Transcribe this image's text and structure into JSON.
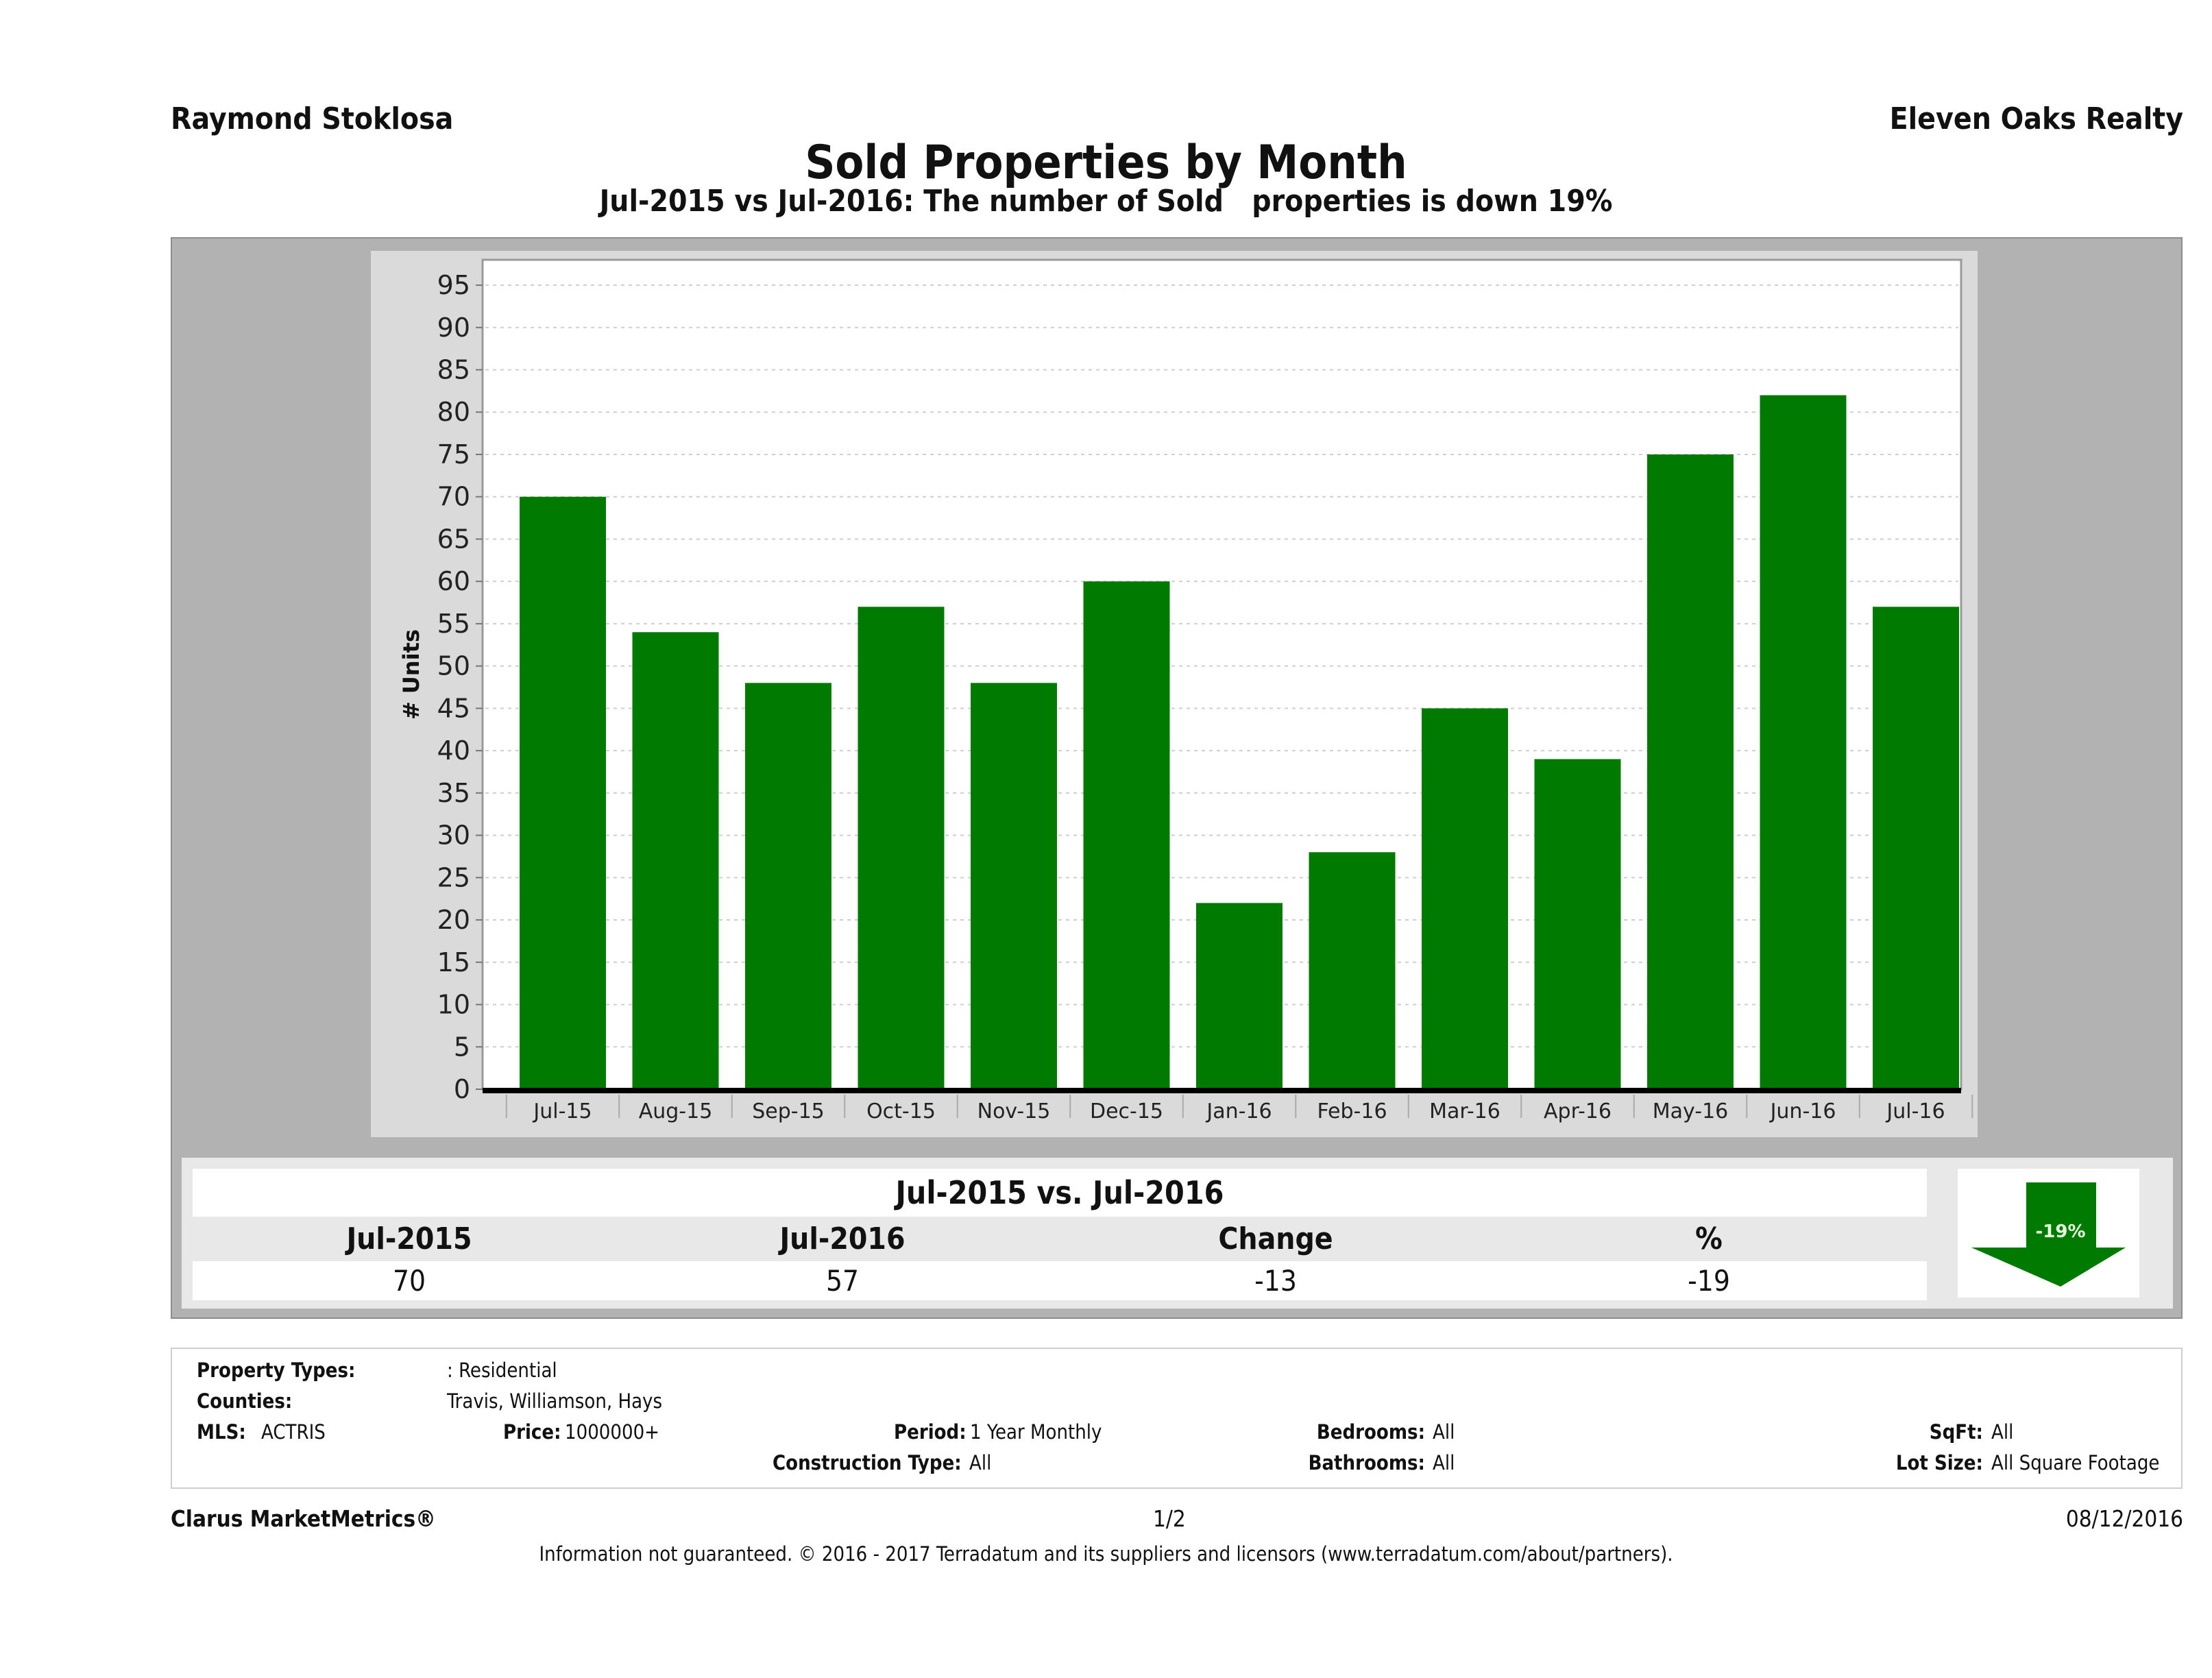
{
  "header": {
    "agent_name": "Raymond Stoklosa",
    "company_name": "Eleven Oaks Realty",
    "title": "Sold Properties by Month",
    "subtitle": "Jul-2015 vs Jul-2016: The number of Sold   properties is down 19%"
  },
  "chart_data": {
    "type": "bar",
    "title": "Sold Properties by Month",
    "xlabel": "",
    "ylabel": "# Units",
    "categories": [
      "Jul-15",
      "Aug-15",
      "Sep-15",
      "Oct-15",
      "Nov-15",
      "Dec-15",
      "Jan-16",
      "Feb-16",
      "Mar-16",
      "Apr-16",
      "May-16",
      "Jun-16",
      "Jul-16"
    ],
    "values": [
      70,
      54,
      48,
      57,
      48,
      60,
      22,
      28,
      45,
      39,
      75,
      82,
      57
    ],
    "ylim": [
      0,
      98
    ],
    "yticks": [
      0,
      5,
      10,
      15,
      20,
      25,
      30,
      35,
      40,
      45,
      50,
      55,
      60,
      65,
      70,
      75,
      80,
      85,
      90,
      95
    ],
    "grid": true,
    "bar_color": "#007a00",
    "legend": "none"
  },
  "summary": {
    "title": "Jul-2015 vs. Jul-2016",
    "headers": [
      "Jul-2015",
      "Jul-2016",
      "Change",
      "%"
    ],
    "values": [
      "70",
      "57",
      "-13",
      "-19"
    ],
    "badge": {
      "text": "-19%",
      "direction": "down",
      "color": "#007a00",
      "icon": "down-arrow-icon"
    }
  },
  "criteria": {
    "property_types_label": "Property Types:",
    "property_types_value": ": Residential",
    "counties_label": "Counties:",
    "counties_value": "Travis, Williamson, Hays",
    "mls_label": "MLS:",
    "mls_value": "ACTRIS",
    "price_label": "Price:",
    "price_value": "1000000+",
    "period_label": "Period:",
    "period_value": "1 Year Monthly",
    "construction_label": "Construction Type:",
    "construction_value": "All",
    "bedrooms_label": "Bedrooms:",
    "bedrooms_value": "All",
    "bathrooms_label": "Bathrooms:",
    "bathrooms_value": "All",
    "sqft_label": "SqFt:",
    "sqft_value": "All",
    "lot_size_label": "Lot Size:",
    "lot_size_value": "All Square Footage"
  },
  "footer": {
    "brand": "Clarus MarketMetrics®",
    "page": "1/2",
    "date": "08/12/2016",
    "disclaimer": "Information not guaranteed. © 2016 - 2017 Terradatum and its suppliers and licensors (www.terradatum.com/about/partners)."
  }
}
